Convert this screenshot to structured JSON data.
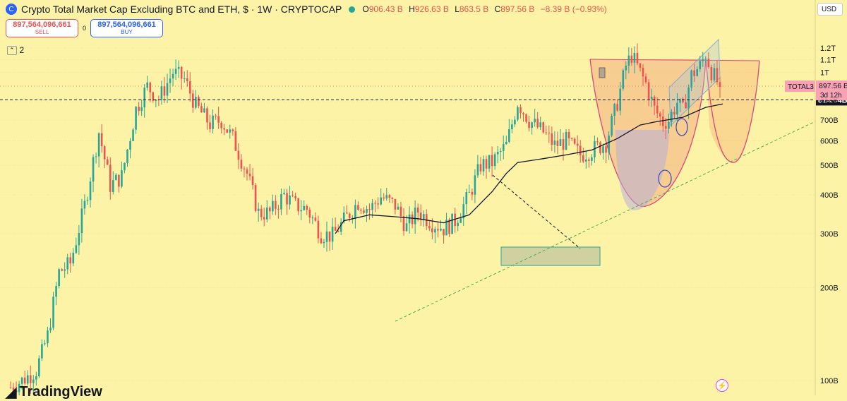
{
  "header": {
    "symbol_icon": "C",
    "title": "Crypto Total Market Cap Excluding BTC and ETH, $ · 1W · CRYPTOCAP",
    "status_color": "#26a69a",
    "ohlc": [
      {
        "label": "O",
        "value": "906.43 B"
      },
      {
        "label": "H",
        "value": "926.63 B"
      },
      {
        "label": "L",
        "value": "863.5 B"
      },
      {
        "label": "C",
        "value": "897.56 B"
      },
      {
        "label": "",
        "value": "−8.39 B (−0.93%)"
      }
    ]
  },
  "trade": {
    "sell_price": "897,564,096,661",
    "sell_label": "SELL",
    "spread": "0",
    "buy_price": "897,564,096,661",
    "buy_label": "BUY"
  },
  "indicators": {
    "collapse_icon": "chevron-icon",
    "count": "2"
  },
  "currency": "USD",
  "logo": "TradingView",
  "alert_icon": "lightning-icon",
  "chart_data": {
    "type": "candlestick",
    "interval": "1W",
    "y_scale": "log",
    "y_ticks": [
      "100B",
      "200B",
      "300B",
      "400B",
      "500B",
      "600B",
      "700B",
      "800B",
      "1T",
      "1.1T",
      "1.2T"
    ],
    "y_tick_values": [
      100,
      200,
      300,
      400,
      500,
      600,
      700,
      800,
      1000,
      1100,
      1200
    ],
    "y_range": [
      95,
      1350
    ],
    "x_date_range": [
      "2020-10",
      "2025-06"
    ],
    "close_series": [
      [
        "2020-10-05",
        95
      ],
      [
        "2020-11-02",
        100
      ],
      [
        "2020-12-07",
        108
      ],
      [
        "2021-01-04",
        140
      ],
      [
        "2021-02-01",
        225
      ],
      [
        "2021-03-01",
        240
      ],
      [
        "2021-04-05",
        370
      ],
      [
        "2021-05-10",
        640
      ],
      [
        "2021-06-07",
        430
      ],
      [
        "2021-07-05",
        460
      ],
      [
        "2021-08-09",
        760
      ],
      [
        "2021-09-06",
        900
      ],
      [
        "2021-10-04",
        820
      ],
      [
        "2021-11-08",
        1000
      ],
      [
        "2021-12-06",
        950
      ],
      [
        "2022-01-03",
        780
      ],
      [
        "2022-02-07",
        680
      ],
      [
        "2022-03-07",
        700
      ],
      [
        "2022-04-04",
        610
      ],
      [
        "2022-05-09",
        470
      ],
      [
        "2022-06-06",
        350
      ],
      [
        "2022-07-04",
        350
      ],
      [
        "2022-08-08",
        400
      ],
      [
        "2022-09-05",
        370
      ],
      [
        "2022-10-03",
        360
      ],
      [
        "2022-11-07",
        300
      ],
      [
        "2022-12-05",
        295
      ],
      [
        "2023-01-02",
        330
      ],
      [
        "2023-02-06",
        380
      ],
      [
        "2023-03-06",
        360
      ],
      [
        "2023-04-03",
        395
      ],
      [
        "2023-05-08",
        370
      ],
      [
        "2023-06-05",
        315
      ],
      [
        "2023-07-03",
        355
      ],
      [
        "2023-08-07",
        325
      ],
      [
        "2023-09-04",
        312
      ],
      [
        "2023-10-02",
        330
      ],
      [
        "2023-11-06",
        400
      ],
      [
        "2023-12-04",
        500
      ],
      [
        "2024-01-01",
        510
      ],
      [
        "2024-02-05",
        580
      ],
      [
        "2024-03-04",
        800
      ],
      [
        "2024-04-01",
        700
      ],
      [
        "2024-05-06",
        640
      ],
      [
        "2024-06-03",
        580
      ],
      [
        "2024-07-01",
        600
      ],
      [
        "2024-08-05",
        540
      ],
      [
        "2024-09-02",
        560
      ],
      [
        "2024-10-07",
        590
      ],
      [
        "2024-11-04",
        800
      ],
      [
        "2024-11-25",
        1050
      ],
      [
        "2024-12-09",
        1140
      ],
      [
        "2024-12-30",
        1000
      ],
      [
        "2025-01-13",
        920
      ],
      [
        "2025-02-03",
        760
      ],
      [
        "2025-02-24",
        690
      ],
      [
        "2025-03-10",
        700
      ],
      [
        "2025-03-31",
        800
      ],
      [
        "2025-04-14",
        750
      ],
      [
        "2025-05-05",
        980
      ],
      [
        "2025-05-26",
        1050
      ],
      [
        "2025-06-09",
        1150
      ],
      [
        "2025-06-23",
        1010
      ],
      [
        "2025-07-14",
        897.56
      ]
    ],
    "moving_average": [
      [
        "2022-12-12",
        300
      ],
      [
        "2023-01-02",
        330
      ],
      [
        "2023-03-06",
        345
      ],
      [
        "2023-05-08",
        340
      ],
      [
        "2023-07-03",
        335
      ],
      [
        "2023-09-04",
        325
      ],
      [
        "2023-11-06",
        345
      ],
      [
        "2024-01-01",
        410
      ],
      [
        "2024-02-05",
        470
      ],
      [
        "2024-03-04",
        510
      ],
      [
        "2024-05-06",
        525
      ],
      [
        "2024-07-01",
        540
      ],
      [
        "2024-09-02",
        560
      ],
      [
        "2024-11-04",
        610
      ],
      [
        "2024-12-30",
        675
      ],
      [
        "2025-02-03",
        690
      ],
      [
        "2025-04-14",
        715
      ],
      [
        "2025-06-09",
        770
      ],
      [
        "2025-07-21",
        790
      ]
    ],
    "current_price_label": "TOTAL3",
    "current_price": "897.56 B",
    "bar_countdown": "3d 12h",
    "horizontal_line_label": "814.64B",
    "horizontal_line_value": 814.64,
    "up_color": "#26a69a",
    "down_color": "#ef5350"
  }
}
